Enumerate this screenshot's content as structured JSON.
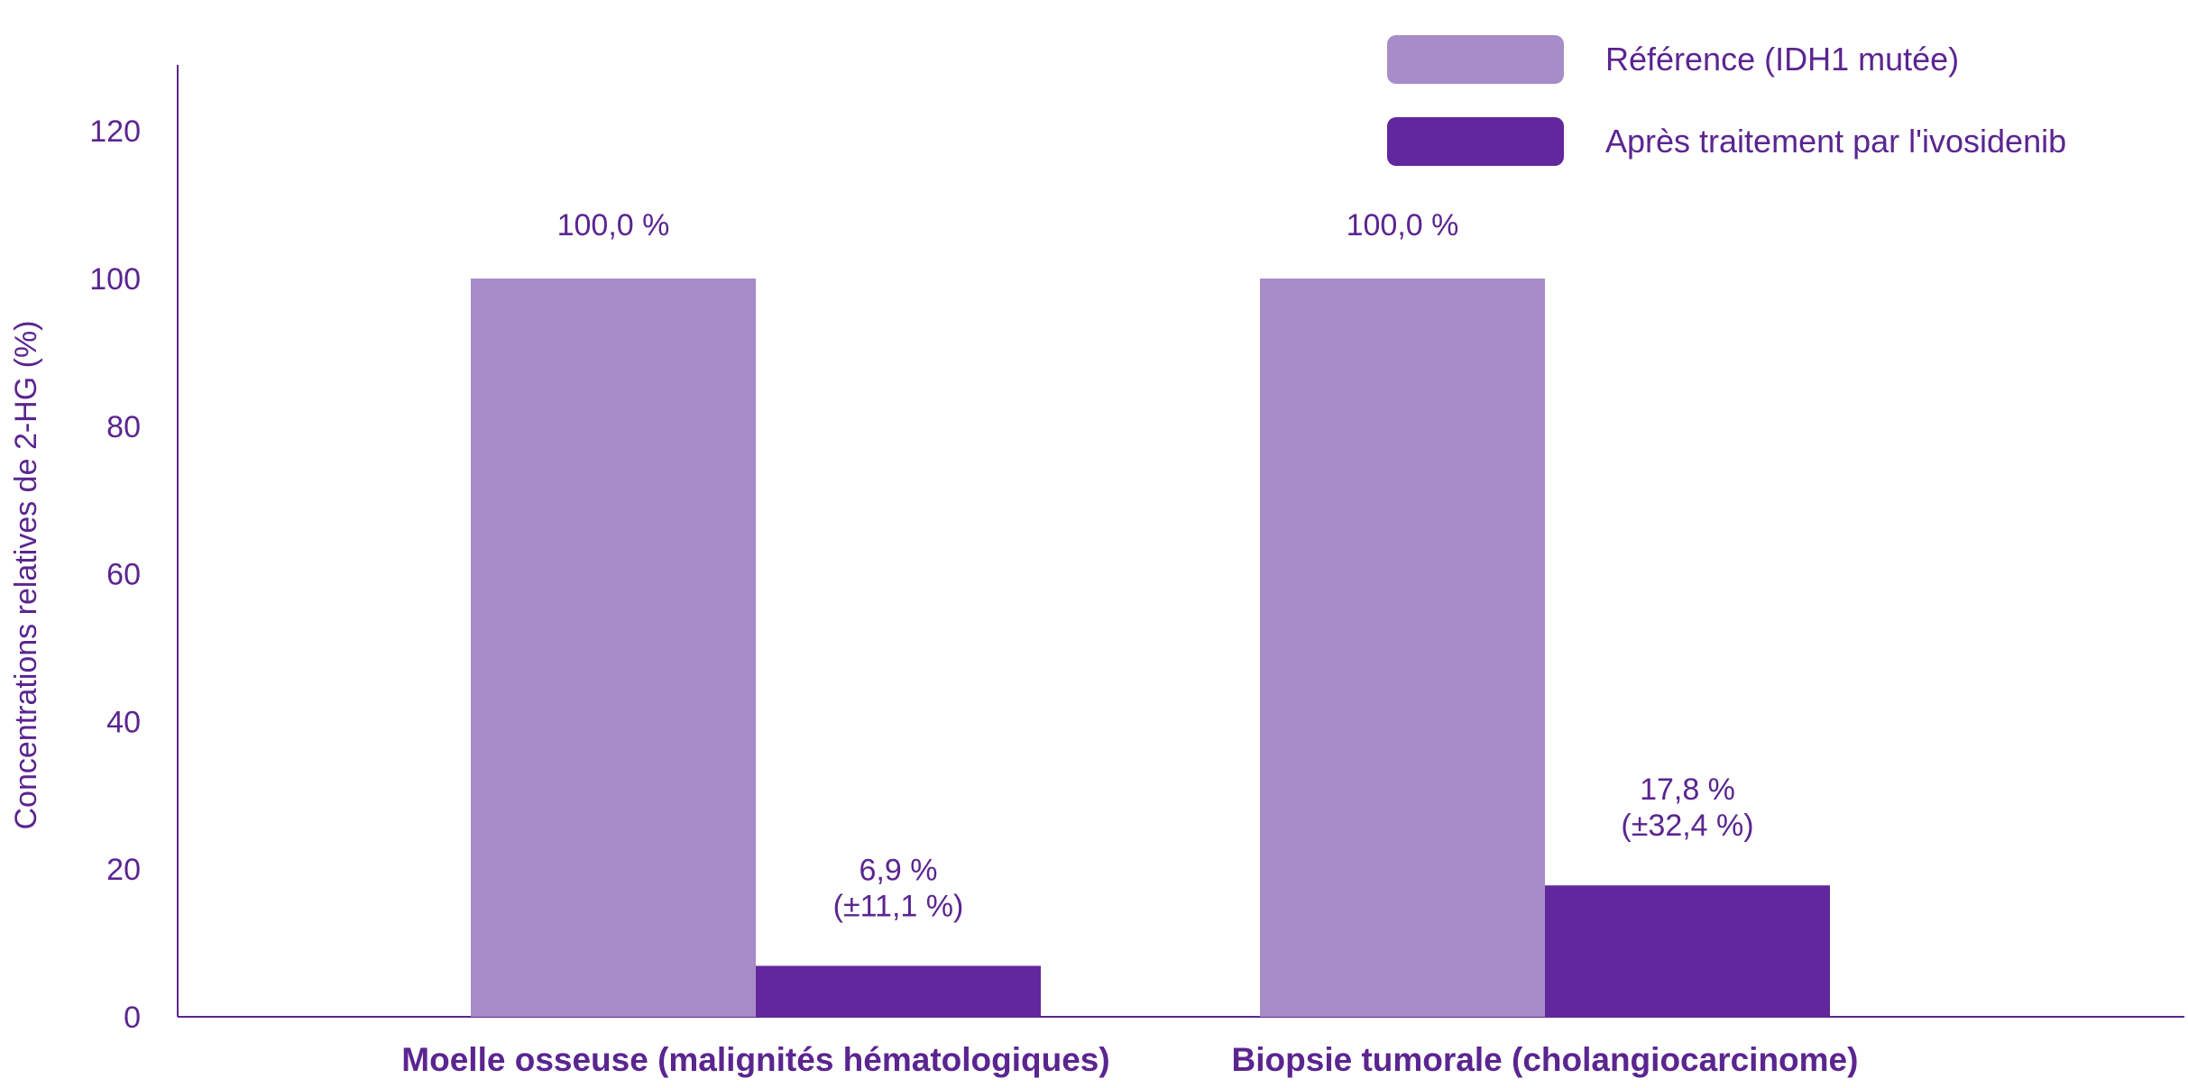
{
  "colors": {
    "text": "#5b2590",
    "axis": "#5b2590",
    "reference": "#a78cc7",
    "treated": "#62279c"
  },
  "chart_data": {
    "type": "bar",
    "ylabel": "Concentrations relatives de 2-HG (%)",
    "xlabel": "",
    "ylim": [
      0,
      130
    ],
    "yticks": [
      0,
      20,
      40,
      60,
      80,
      100,
      120
    ],
    "grid": false,
    "legend_position": "top-right",
    "categories": [
      "Moelle osseuse (malignités hématologiques)",
      "Biopsie tumorale (cholangiocarcinome)"
    ],
    "series": [
      {
        "name": "Référence (IDH1 mutée)",
        "color": "#a78cc7",
        "values": [
          100.0,
          100.0
        ],
        "labels": [
          [
            "100,0 %"
          ],
          [
            "100,0 %"
          ]
        ]
      },
      {
        "name": "Après traitement par l'ivosidenib",
        "color": "#62279c",
        "values": [
          6.9,
          17.8
        ],
        "labels": [
          [
            "6,9 %",
            "(±11,1 %)"
          ],
          [
            "17,8 %",
            "(±32,4 %)"
          ]
        ]
      }
    ]
  }
}
